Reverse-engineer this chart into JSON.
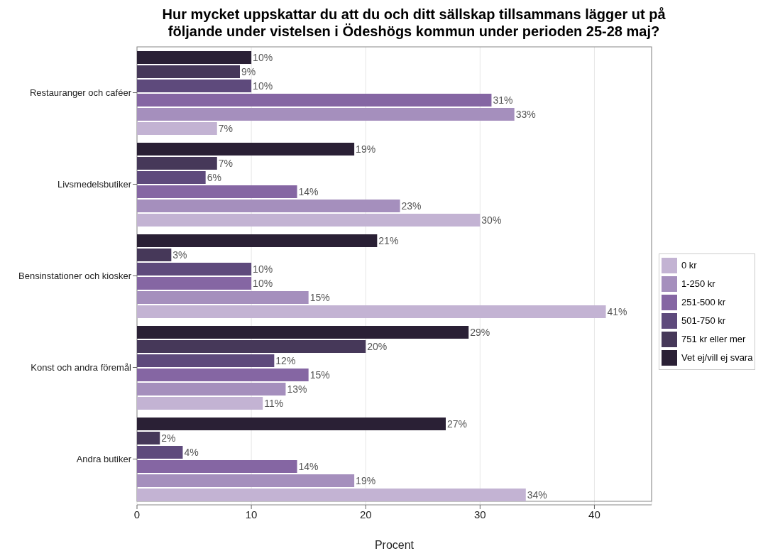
{
  "chart_data": {
    "type": "bar",
    "orientation": "horizontal",
    "title": "Hur mycket uppskattar du att du och ditt sällskap tillsammans lägger ut på följande under vistelsen i Ödeshögs kommun under perioden 25-28 maj?",
    "xlabel": "Procent",
    "categories": [
      "Restauranger och caféer",
      "Livsmedelsbutiker",
      "Bensinstationer och kiosker",
      "Konst och andra föremål",
      "Andra butiker"
    ],
    "series": [
      {
        "name": "0 kr",
        "color": "#c3b3d3",
        "values": [
          7,
          30,
          41,
          11,
          34
        ],
        "value_labels": [
          "7%",
          "30%",
          "41%",
          "11%",
          "34%"
        ]
      },
      {
        "name": "1-250 kr",
        "color": "#a58fbd",
        "values": [
          33,
          23,
          15,
          13,
          19
        ],
        "value_labels": [
          "33%",
          "23%",
          "15%",
          "13%",
          "19%"
        ]
      },
      {
        "name": "251-500 kr",
        "color": "#8566a3",
        "values": [
          31,
          14,
          10,
          15,
          14
        ],
        "value_labels": [
          "31%",
          "14%",
          "10%",
          "15%",
          "14%"
        ]
      },
      {
        "name": "501-750 kr",
        "color": "#5e4a7c",
        "values": [
          10,
          6,
          10,
          12,
          4
        ],
        "value_labels": [
          "10%",
          "6%",
          "10%",
          "12%",
          "4%"
        ]
      },
      {
        "name": "751 kr eller mer",
        "color": "#463859",
        "values": [
          9,
          7,
          3,
          20,
          2
        ],
        "value_labels": [
          "9%",
          "7%",
          "3%",
          "20%",
          "2%"
        ]
      },
      {
        "name": "Vet ej/vill ej svara",
        "color": "#2a2035",
        "values": [
          10,
          19,
          21,
          29,
          27
        ],
        "value_labels": [
          "10%",
          "19%",
          "21%",
          "29%",
          "27%"
        ]
      }
    ],
    "xlim": [
      0,
      45
    ],
    "xticks": [
      0,
      10,
      20,
      30,
      40
    ],
    "grid": "x",
    "legend": "right"
  }
}
